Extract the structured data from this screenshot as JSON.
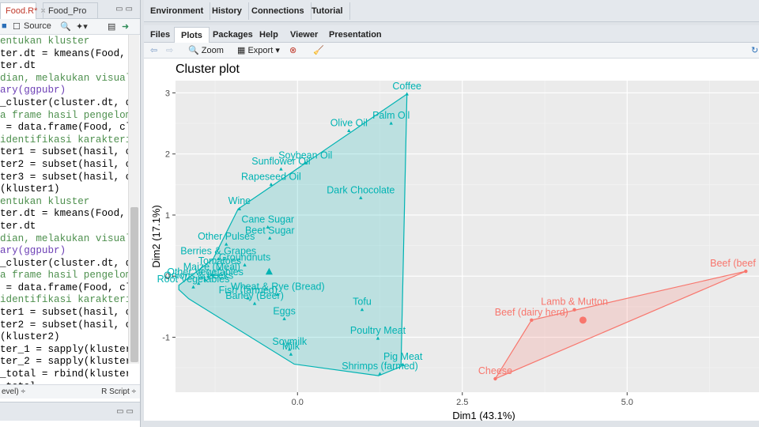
{
  "editor": {
    "tabs": [
      {
        "label": "Food.R*",
        "close": "×"
      },
      {
        "label": "Food_Pro",
        "close": ""
      }
    ],
    "toolbar": {
      "source_label": "Source"
    },
    "code_lines": [
      {
        "text": "entukan kluster",
        "kind": "comment"
      },
      {
        "text": "ter.dt = kmeans(Food, c",
        "kind": "code"
      },
      {
        "text": "ter.dt",
        "kind": "code"
      },
      {
        "text": "dian, melakukan visual",
        "kind": "comment"
      },
      {
        "text": "ary(ggpubr)",
        "kind": "fn"
      },
      {
        "text": "_cluster(cluster.dt, da",
        "kind": "code"
      },
      {
        "text": "a frame hasil pengelomp",
        "kind": "comment"
      },
      {
        "text": " = data.frame(Food, cl",
        "kind": "code"
      },
      {
        "text": "identifikasi karakteri",
        "kind": "comment"
      },
      {
        "text": "ter1 = subset(hasil, cl",
        "kind": "code"
      },
      {
        "text": "ter2 = subset(hasil, cl",
        "kind": "code"
      },
      {
        "text": "ter3 = subset(hasil, cl",
        "kind": "code"
      },
      {
        "text": "(kluster1)",
        "kind": "code"
      },
      {
        "text": "entukan kluster",
        "kind": "comment"
      },
      {
        "text": "ter.dt = kmeans(Food, c",
        "kind": "code"
      },
      {
        "text": "ter.dt",
        "kind": "code"
      },
      {
        "text": "dian, melakukan visual",
        "kind": "comment"
      },
      {
        "text": "ary(ggpubr)",
        "kind": "fn"
      },
      {
        "text": "_cluster(cluster.dt, da",
        "kind": "code"
      },
      {
        "text": "a frame hasil pengelomp",
        "kind": "comment"
      },
      {
        "text": " = data.frame(Food, cl",
        "kind": "code"
      },
      {
        "text": "identifikasi karakteri",
        "kind": "comment"
      },
      {
        "text": "ter1 = subset(hasil, cl",
        "kind": "code"
      },
      {
        "text": "ter2 = subset(hasil, cl",
        "kind": "code"
      },
      {
        "text": "(kluster2)",
        "kind": "code"
      },
      {
        "text": "ter_1 = sapply(kluster1",
        "kind": "code"
      },
      {
        "text": "ter_2 = sapply(kluster2",
        "kind": "code"
      },
      {
        "text": "_total = rbind(kluster_",
        "kind": "code"
      },
      {
        "text": "_total",
        "kind": "code"
      }
    ],
    "status_left": "evel) ÷",
    "status_right": "R Script ÷"
  },
  "top_tabs": [
    "Environment",
    "History",
    "Connections",
    "Tutorial"
  ],
  "lower_tabs": [
    "Files",
    "Plots",
    "Packages",
    "Help",
    "Viewer",
    "Presentation"
  ],
  "active_lower_tab": "Plots",
  "plot_toolbar": {
    "zoom_label": "Zoom",
    "export_label": "Export"
  },
  "colors": {
    "cluster1": "#00b3b3",
    "cluster2": "#f8766d",
    "panel_bg": "#ebebeb"
  },
  "chart_data": {
    "type": "scatter",
    "title": "Cluster plot",
    "xlabel": "Dim1 (43.1%)",
    "ylabel": "Dim2 (17.1%)",
    "xlim": [
      -1.85,
      7.0
    ],
    "ylim": [
      -1.9,
      3.2
    ],
    "x_ticks": [
      0.0,
      2.5,
      5.0
    ],
    "x_tick_labels": [
      "0.0",
      "2.5",
      "5.0"
    ],
    "y_ticks": [
      -1,
      0,
      1,
      2,
      3
    ],
    "y_tick_labels": [
      "-1",
      "0",
      "1",
      "2",
      "3"
    ],
    "grid": true,
    "series": [
      {
        "cluster": "1",
        "color": "#00b3b3",
        "marker": "triangle",
        "centroid": [
          -0.43,
          0.07
        ],
        "hull": [
          [
            1.66,
            2.98
          ],
          [
            1.57,
            -1.48
          ],
          [
            1.23,
            -1.63
          ],
          [
            -0.05,
            -1.44
          ],
          [
            -1.65,
            -0.37
          ],
          [
            -1.8,
            -0.22
          ],
          [
            -1.8,
            -0.15
          ],
          [
            -1.28,
            0.28
          ],
          [
            -0.9,
            1.1
          ]
        ],
        "points": [
          {
            "label": "Coffee",
            "x": 1.66,
            "y": 2.98
          },
          {
            "label": "Palm Oil",
            "x": 1.42,
            "y": 2.5
          },
          {
            "label": "Olive Oil",
            "x": 0.78,
            "y": 2.38
          },
          {
            "label": "Soybean Oil",
            "x": 0.12,
            "y": 1.85
          },
          {
            "label": "Sunflower Oil",
            "x": -0.25,
            "y": 1.75
          },
          {
            "label": "Rapeseed Oil",
            "x": -0.4,
            "y": 1.5
          },
          {
            "label": "Dark Chocolate",
            "x": 0.96,
            "y": 1.28
          },
          {
            "label": "Wine",
            "x": -0.88,
            "y": 1.1
          },
          {
            "label": "Cane Sugar",
            "x": -0.45,
            "y": 0.8
          },
          {
            "label": "Beet Sugar",
            "x": -0.42,
            "y": 0.62
          },
          {
            "label": "Other Pulses",
            "x": -1.08,
            "y": 0.52
          },
          {
            "label": "Berries & Grapes",
            "x": -1.2,
            "y": 0.28
          },
          {
            "label": "Groundnuts",
            "x": -0.8,
            "y": 0.18
          },
          {
            "label": "Tomatoes",
            "x": -1.18,
            "y": 0.12
          },
          {
            "label": "Maize (Meal)",
            "x": -1.3,
            "y": 0.02
          },
          {
            "label": "Other Vegetables",
            "x": -1.4,
            "y": -0.06
          },
          {
            "label": "Onions & Leeks",
            "x": -1.5,
            "y": -0.12
          },
          {
            "label": "Root Vegetables",
            "x": -1.58,
            "y": -0.18
          },
          {
            "label": "Wheat & Rye (Bread)",
            "x": -0.3,
            "y": -0.3
          },
          {
            "label": "Barley (Beer)",
            "x": -0.65,
            "y": -0.45
          },
          {
            "label": "Fish (farmed)",
            "x": -0.75,
            "y": -0.36
          },
          {
            "label": "Tofu",
            "x": 0.98,
            "y": -0.55
          },
          {
            "label": "Eggs",
            "x": -0.2,
            "y": -0.7
          },
          {
            "label": "Poultry Meat",
            "x": 1.22,
            "y": -1.02
          },
          {
            "label": "Soymilk",
            "x": -0.12,
            "y": -1.2
          },
          {
            "label": "Milk",
            "x": -0.1,
            "y": -1.28
          },
          {
            "label": "Pig Meat",
            "x": 1.6,
            "y": -1.45
          },
          {
            "label": "Shrimps (farmed)",
            "x": 1.25,
            "y": -1.6
          }
        ]
      },
      {
        "cluster": "2",
        "color": "#f8766d",
        "marker": "circle",
        "centroid": [
          4.33,
          -0.72
        ],
        "hull": [
          [
            6.8,
            0.08
          ],
          [
            3.0,
            -1.68
          ],
          [
            3.55,
            -0.72
          ]
        ],
        "points": [
          {
            "label": "Beef (beef herd)",
            "x": 6.8,
            "y": 0.08
          },
          {
            "label": "Lamb & Mutton",
            "x": 4.2,
            "y": -0.55
          },
          {
            "label": "Beef (dairy herd)",
            "x": 3.55,
            "y": -0.72
          },
          {
            "label": "Cheese",
            "x": 3.0,
            "y": -1.68
          }
        ]
      }
    ]
  }
}
